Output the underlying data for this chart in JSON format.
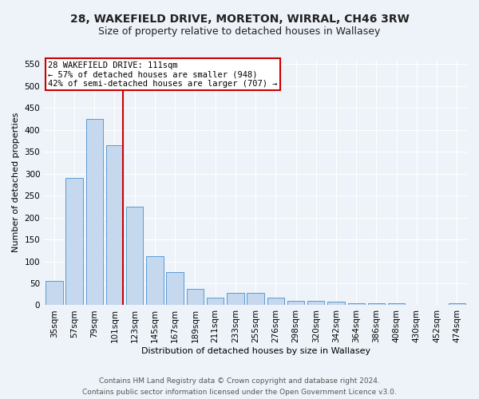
{
  "title1": "28, WAKEFIELD DRIVE, MORETON, WIRRAL, CH46 3RW",
  "title2": "Size of property relative to detached houses in Wallasey",
  "xlabel": "Distribution of detached houses by size in Wallasey",
  "ylabel": "Number of detached properties",
  "categories": [
    "35sqm",
    "57sqm",
    "79sqm",
    "101sqm",
    "123sqm",
    "145sqm",
    "167sqm",
    "189sqm",
    "211sqm",
    "233sqm",
    "255sqm",
    "276sqm",
    "298sqm",
    "320sqm",
    "342sqm",
    "364sqm",
    "386sqm",
    "408sqm",
    "430sqm",
    "452sqm",
    "474sqm"
  ],
  "values": [
    55,
    290,
    425,
    365,
    225,
    112,
    76,
    38,
    18,
    29,
    29,
    17,
    10,
    10,
    8,
    4,
    4,
    5,
    0,
    0,
    5
  ],
  "bar_color": "#c5d8ed",
  "bar_edge_color": "#5b9bd5",
  "vline_color": "#cc0000",
  "annotation_title": "28 WAKEFIELD DRIVE: 111sqm",
  "annotation_line1": "← 57% of detached houses are smaller (948)",
  "annotation_line2": "42% of semi-detached houses are larger (707) →",
  "annotation_box_color": "#ffffff",
  "annotation_box_edge": "#cc0000",
  "ylim": [
    0,
    560
  ],
  "yticks": [
    0,
    50,
    100,
    150,
    200,
    250,
    300,
    350,
    400,
    450,
    500,
    550
  ],
  "footer1": "Contains HM Land Registry data © Crown copyright and database right 2024.",
  "footer2": "Contains public sector information licensed under the Open Government Licence v3.0.",
  "bg_color": "#eef3f9",
  "title1_fontsize": 10,
  "title2_fontsize": 9,
  "axis_label_fontsize": 8,
  "tick_fontsize": 7.5,
  "annotation_fontsize": 7.5,
  "footer_fontsize": 6.5
}
